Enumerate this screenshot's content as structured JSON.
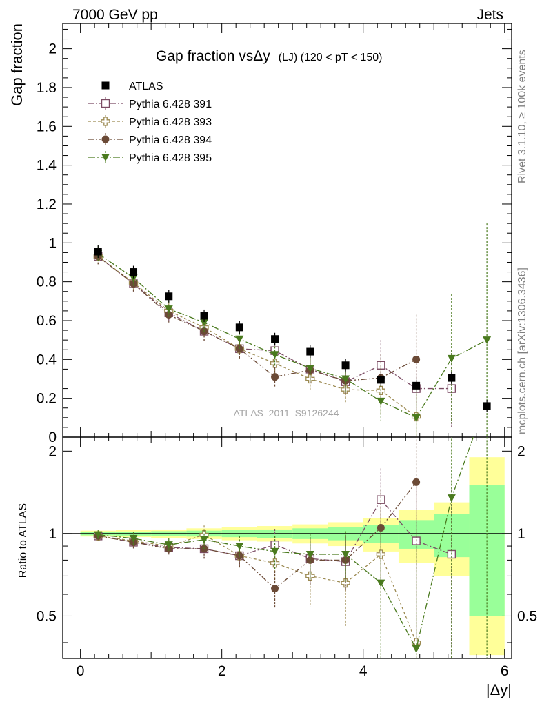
{
  "header": {
    "left": "7000 GeV pp",
    "right": "Jets"
  },
  "side_labels": {
    "top": "Rivet 3.1.10, ≥ 100k events",
    "bottom": "mcplots.cern.ch [arXiv:1306.3436]"
  },
  "watermark": "ATLAS_2011_S9126244",
  "chart_data": {
    "type": "scatter",
    "title_main": "Gap fraction vsΔy",
    "title_sub": "(LJ) (120 < pT < 150)",
    "ylabel": "Gap fraction",
    "ratio_ylabel": "Ratio to ATLAS",
    "xlabel": "|Δy|",
    "xlim": [
      -0.25,
      6.1
    ],
    "ylim": [
      0,
      2.13
    ],
    "ratio_ylim": [
      0.35,
      2.25
    ],
    "x_ticks": [
      "0",
      "2",
      "4",
      "6"
    ],
    "y_ticks": [
      "0",
      "0.2",
      "0.4",
      "0.6",
      "0.8",
      "1",
      "1.2",
      "1.4",
      "1.6",
      "1.8",
      "2"
    ],
    "ratio_ticks": [
      "0.5",
      "1",
      "2"
    ],
    "ratio_right_ticks": [
      "0.5",
      "1",
      "2"
    ],
    "x": [
      0.25,
      0.75,
      1.25,
      1.75,
      2.25,
      2.75,
      3.25,
      3.75,
      4.25,
      4.75,
      5.25,
      5.75
    ],
    "series": [
      {
        "name": "ATLAS",
        "color": "#000000",
        "marker": "filled-square",
        "values": [
          0.955,
          0.85,
          0.725,
          0.625,
          0.565,
          0.505,
          0.44,
          0.37,
          0.295,
          0.265,
          0.305,
          0.16
        ]
      },
      {
        "name": "Pythia 6.428 391",
        "color": "#7b4b63",
        "marker": "open-square",
        "values": [
          0.93,
          0.79,
          0.64,
          0.545,
          0.455,
          0.445,
          0.35,
          0.285,
          0.37,
          0.25,
          0.25,
          null
        ],
        "errors": [
          0.04,
          0.04,
          0.04,
          0.05,
          0.05,
          0.07,
          0.07,
          0.07,
          0.13,
          0.15,
          0.2,
          null
        ],
        "ratio": [
          0.98,
          0.93,
          0.89,
          0.88,
          0.83,
          0.91,
          0.81,
          0.79,
          1.33,
          0.94,
          0.84,
          null
        ],
        "ratio_errors": [
          0.04,
          0.05,
          0.05,
          0.07,
          0.07,
          0.13,
          0.16,
          0.18,
          0.4,
          0.55,
          0.6,
          null
        ]
      },
      {
        "name": "Pythia 6.428 393",
        "color": "#9c8a52",
        "marker": "open-cross",
        "values": [
          0.93,
          0.795,
          0.65,
          0.565,
          0.455,
          0.38,
          0.3,
          0.245,
          0.24,
          0.105,
          null,
          null
        ],
        "errors": [
          0.04,
          0.04,
          0.04,
          0.05,
          0.05,
          0.06,
          0.06,
          0.07,
          0.12,
          0.12,
          null,
          null
        ],
        "ratio": [
          0.98,
          0.94,
          0.9,
          0.99,
          0.83,
          0.78,
          0.7,
          0.66,
          0.84,
          0.4,
          null,
          null
        ],
        "ratio_errors": [
          0.04,
          0.05,
          0.05,
          0.08,
          0.08,
          0.12,
          0.16,
          0.2,
          0.4,
          0.5,
          null,
          null
        ]
      },
      {
        "name": "Pythia 6.428 394",
        "color": "#6b4a36",
        "marker": "filled-circle",
        "values": [
          0.93,
          0.79,
          0.63,
          0.545,
          0.455,
          0.31,
          0.345,
          0.29,
          0.305,
          0.4,
          null,
          null
        ],
        "errors": [
          0.04,
          0.04,
          0.04,
          0.05,
          0.05,
          0.05,
          0.07,
          0.07,
          0.12,
          0.23,
          null,
          null
        ],
        "ratio": [
          0.98,
          0.93,
          0.88,
          0.88,
          0.83,
          0.63,
          0.8,
          0.8,
          1.05,
          1.54,
          null,
          null
        ],
        "ratio_errors": [
          0.04,
          0.05,
          0.05,
          0.07,
          0.08,
          0.1,
          0.16,
          0.18,
          0.4,
          0.8,
          null,
          null
        ]
      },
      {
        "name": "Pythia 6.428 395",
        "color": "#4a7a1e",
        "marker": "filled-triangle-down",
        "values": [
          0.945,
          0.82,
          0.66,
          0.59,
          0.505,
          0.425,
          0.355,
          0.3,
          0.185,
          0.1,
          0.405,
          0.5
        ],
        "errors": [
          0.04,
          0.04,
          0.04,
          0.05,
          0.05,
          0.06,
          0.07,
          0.07,
          0.1,
          0.15,
          0.33,
          0.6
        ],
        "ratio": [
          0.99,
          0.96,
          0.91,
          0.95,
          0.9,
          0.86,
          0.84,
          0.84,
          0.66,
          0.38,
          1.35,
          3.1
        ],
        "ratio_errors": [
          0.04,
          0.05,
          0.05,
          0.08,
          0.08,
          0.12,
          0.16,
          0.18,
          0.35,
          0.6,
          1.0,
          3.5
        ]
      }
    ],
    "ratio_band": {
      "x_edges": [
        0,
        0.5,
        1.0,
        1.5,
        2.0,
        2.5,
        3.0,
        3.5,
        4.0,
        4.5,
        5.0,
        5.5,
        6.0
      ],
      "inner": [
        0.015,
        0.017,
        0.02,
        0.025,
        0.03,
        0.035,
        0.045,
        0.055,
        0.075,
        0.12,
        0.18,
        0.5
      ],
      "outer": [
        0.025,
        0.03,
        0.035,
        0.045,
        0.055,
        0.065,
        0.08,
        0.1,
        0.14,
        0.22,
        0.3,
        0.9
      ],
      "inner_color": "#99ff99",
      "outer_color": "#ffff99"
    }
  }
}
